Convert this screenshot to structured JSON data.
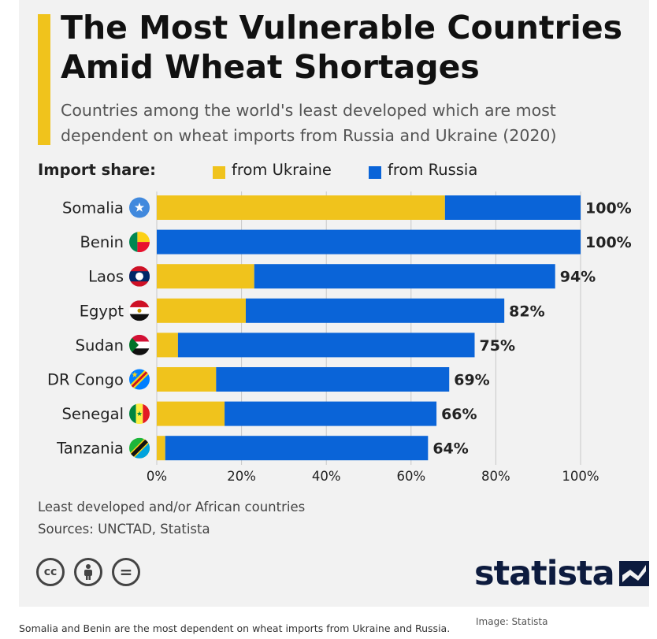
{
  "title": "The Most Vulnerable Countries Amid Wheat Shortages",
  "subtitle": "Countries among the world's least developed which are most dependent on wheat imports from Russia and Ukraine (2020)",
  "legend": {
    "title": "Import share:",
    "items": [
      {
        "label": "from Ukraine",
        "color": "#f0c31c"
      },
      {
        "label": "from Russia",
        "color": "#0a64d8"
      }
    ]
  },
  "chart_data": {
    "type": "bar",
    "orientation": "horizontal",
    "stacked": true,
    "categories": [
      "Somalia",
      "Benin",
      "Laos",
      "Egypt",
      "Sudan",
      "DR Congo",
      "Senegal",
      "Tanzania"
    ],
    "flag_icons": [
      "somalia-flag-icon",
      "benin-flag-icon",
      "laos-flag-icon",
      "egypt-flag-icon",
      "sudan-flag-icon",
      "dr-congo-flag-icon",
      "senegal-flag-icon",
      "tanzania-flag-icon"
    ],
    "series": [
      {
        "name": "from Ukraine",
        "color": "#f0c31c",
        "values": [
          68,
          0,
          23,
          21,
          5,
          14,
          16,
          2
        ]
      },
      {
        "name": "from Russia",
        "color": "#0a64d8",
        "values": [
          32,
          100,
          71,
          61,
          70,
          55,
          50,
          62
        ]
      }
    ],
    "totals": [
      100,
      100,
      94,
      82,
      75,
      69,
      66,
      64
    ],
    "total_labels": [
      "100%",
      "100%",
      "94%",
      "82%",
      "75%",
      "69%",
      "66%",
      "64%"
    ],
    "xlim": [
      0,
      100
    ],
    "x_ticks": [
      0,
      20,
      40,
      60,
      80,
      100
    ],
    "x_tick_labels": [
      "0%",
      "20%",
      "40%",
      "60%",
      "80%",
      "100%"
    ],
    "grid": true,
    "legend_position": "top"
  },
  "notes": {
    "footnote": "Least developed and/or African countries",
    "sources": "Sources: UNCTAD, Statista"
  },
  "license_icons": [
    "cc-icon",
    "attribution-icon",
    "no-derivatives-icon"
  ],
  "license_glyphs": [
    "cc",
    "=",
    "i"
  ],
  "brand": {
    "name": "statista",
    "color": "#0d1b3e"
  },
  "caption": "Somalia and Benin are the most dependent on wheat imports from Ukraine and Russia.",
  "image_credit": "Image: Statista"
}
